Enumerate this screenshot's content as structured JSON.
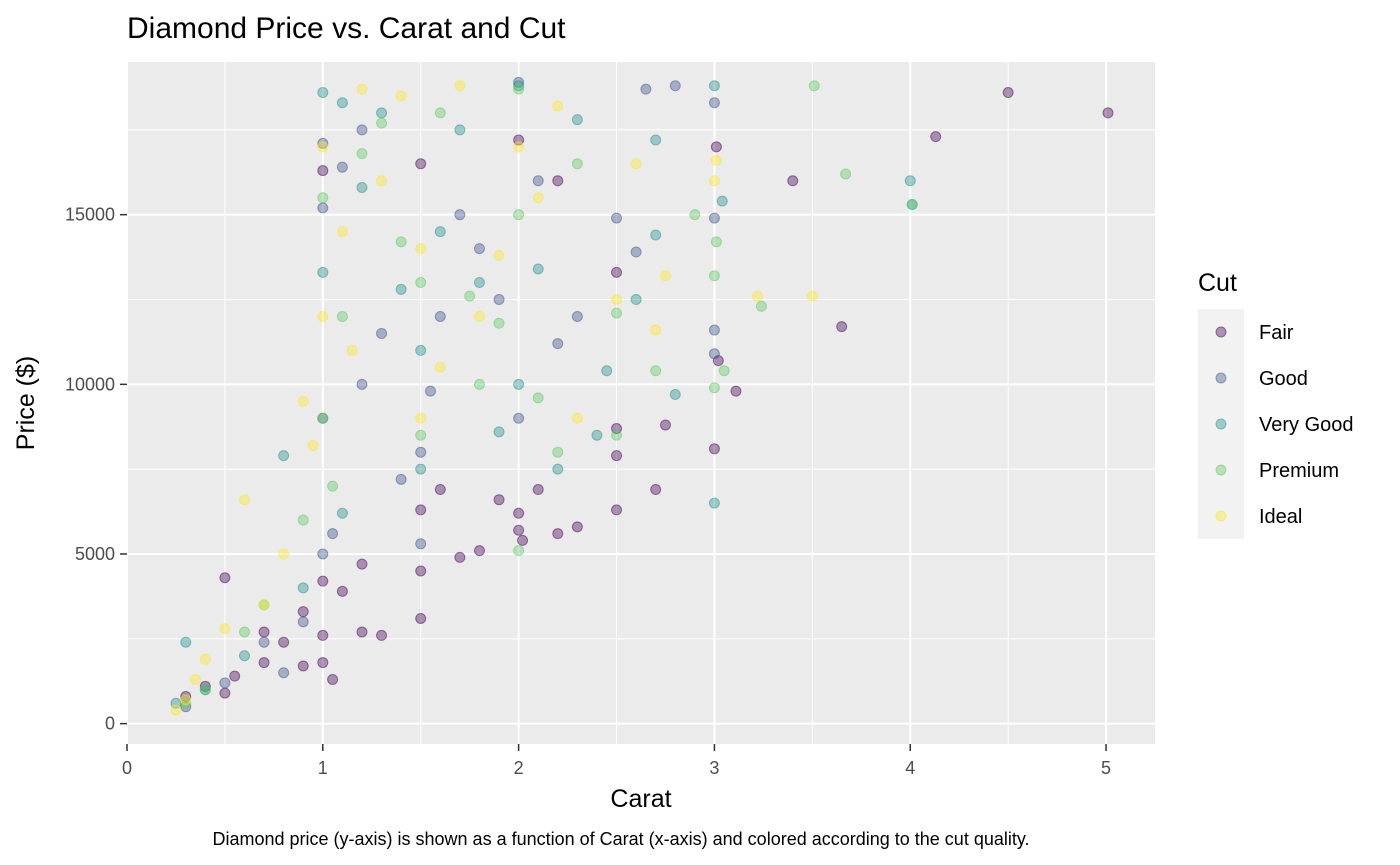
{
  "chart_data": {
    "type": "scatter",
    "title": "Diamond Price vs. Carat and Cut",
    "xlabel": "Carat",
    "ylabel": "Price ($)",
    "caption": "Diamond price (y-axis) is shown as a function of Carat (x-axis) and colored according to the cut quality.",
    "xlim": [
      0,
      5.25
    ],
    "ylim": [
      -600,
      19500
    ],
    "x_ticks": [
      0,
      1,
      2,
      3,
      4,
      5
    ],
    "x_tick_labels": [
      "0",
      "1",
      "2",
      "3",
      "4",
      "5"
    ],
    "y_ticks": [
      0,
      5000,
      10000,
      15000
    ],
    "y_tick_labels": [
      "0",
      "5000",
      "10000",
      "15000"
    ],
    "grid": true,
    "point_alpha": 0.4,
    "legend": {
      "title": "Cut",
      "position": "right"
    },
    "series": [
      {
        "name": "Fair",
        "color": "#440154",
        "points": [
          [
            0.3,
            800
          ],
          [
            0.4,
            1100
          ],
          [
            0.5,
            900
          ],
          [
            0.5,
            4300
          ],
          [
            0.55,
            1400
          ],
          [
            0.7,
            1800
          ],
          [
            0.7,
            2700
          ],
          [
            0.8,
            2400
          ],
          [
            0.9,
            1700
          ],
          [
            0.9,
            3300
          ],
          [
            1.0,
            1800
          ],
          [
            1.0,
            2600
          ],
          [
            1.0,
            4200
          ],
          [
            1.05,
            1300
          ],
          [
            1.1,
            3900
          ],
          [
            1.2,
            2700
          ],
          [
            1.2,
            4700
          ],
          [
            1.3,
            2600
          ],
          [
            1.5,
            3100
          ],
          [
            1.5,
            4500
          ],
          [
            1.5,
            6300
          ],
          [
            1.6,
            6900
          ],
          [
            1.7,
            4900
          ],
          [
            1.8,
            5100
          ],
          [
            1.9,
            6600
          ],
          [
            2.0,
            5700
          ],
          [
            2.0,
            6200
          ],
          [
            2.02,
            5400
          ],
          [
            2.1,
            6900
          ],
          [
            2.2,
            5600
          ],
          [
            2.3,
            5800
          ],
          [
            2.5,
            6300
          ],
          [
            2.5,
            7900
          ],
          [
            2.5,
            8700
          ],
          [
            2.7,
            6900
          ],
          [
            2.75,
            8800
          ],
          [
            3.0,
            8100
          ],
          [
            3.01,
            17000
          ],
          [
            3.02,
            10700
          ],
          [
            3.11,
            9800
          ],
          [
            3.4,
            16000
          ],
          [
            3.65,
            11700
          ],
          [
            4.13,
            17300
          ],
          [
            4.5,
            18600
          ],
          [
            5.01,
            18000
          ],
          [
            2.0,
            17200
          ],
          [
            2.2,
            16000
          ],
          [
            2.5,
            13300
          ],
          [
            1.5,
            16500
          ],
          [
            1.0,
            16300
          ]
        ]
      },
      {
        "name": "Good",
        "color": "#3b528b",
        "points": [
          [
            0.3,
            500
          ],
          [
            0.5,
            1200
          ],
          [
            0.7,
            2400
          ],
          [
            0.9,
            3000
          ],
          [
            1.0,
            5000
          ],
          [
            1.0,
            9000
          ],
          [
            1.0,
            15200
          ],
          [
            1.1,
            16400
          ],
          [
            1.2,
            10000
          ],
          [
            1.3,
            11500
          ],
          [
            1.5,
            5300
          ],
          [
            1.5,
            8000
          ],
          [
            1.6,
            12000
          ],
          [
            1.8,
            14000
          ],
          [
            2.0,
            9000
          ],
          [
            2.0,
            18900
          ],
          [
            2.1,
            16000
          ],
          [
            2.3,
            12000
          ],
          [
            2.5,
            14900
          ],
          [
            2.6,
            13900
          ],
          [
            2.65,
            18700
          ],
          [
            2.8,
            18800
          ],
          [
            3.0,
            10900
          ],
          [
            3.0,
            11600
          ],
          [
            3.0,
            14900
          ],
          [
            3.0,
            18300
          ],
          [
            1.0,
            17100
          ],
          [
            1.2,
            17500
          ],
          [
            1.7,
            15000
          ],
          [
            1.9,
            12500
          ],
          [
            0.8,
            1500
          ],
          [
            1.05,
            5600
          ],
          [
            1.4,
            7200
          ],
          [
            1.55,
            9800
          ],
          [
            2.2,
            11200
          ]
        ]
      },
      {
        "name": "Very Good",
        "color": "#21908d",
        "points": [
          [
            0.25,
            600
          ],
          [
            0.3,
            2400
          ],
          [
            0.4,
            1000
          ],
          [
            0.6,
            2000
          ],
          [
            0.8,
            7900
          ],
          [
            1.0,
            13300
          ],
          [
            1.0,
            18600
          ],
          [
            1.1,
            18300
          ],
          [
            1.3,
            18000
          ],
          [
            1.5,
            7500
          ],
          [
            1.5,
            11000
          ],
          [
            1.6,
            14500
          ],
          [
            1.8,
            13000
          ],
          [
            2.0,
            10000
          ],
          [
            2.0,
            18800
          ],
          [
            2.2,
            7500
          ],
          [
            2.4,
            8500
          ],
          [
            2.6,
            12500
          ],
          [
            2.7,
            14400
          ],
          [
            2.7,
            17200
          ],
          [
            2.8,
            9700
          ],
          [
            3.0,
            6500
          ],
          [
            3.0,
            18800
          ],
          [
            3.04,
            15400
          ],
          [
            4.0,
            16000
          ],
          [
            4.01,
            15300
          ],
          [
            1.2,
            15800
          ],
          [
            1.4,
            12800
          ],
          [
            1.7,
            17500
          ],
          [
            2.3,
            17800
          ],
          [
            0.9,
            4000
          ],
          [
            1.1,
            6200
          ],
          [
            1.9,
            8600
          ],
          [
            2.1,
            13400
          ],
          [
            2.45,
            10400
          ]
        ]
      },
      {
        "name": "Premium",
        "color": "#5ec962",
        "points": [
          [
            0.3,
            600
          ],
          [
            0.4,
            1000
          ],
          [
            0.6,
            2700
          ],
          [
            0.9,
            6000
          ],
          [
            1.0,
            9000
          ],
          [
            1.0,
            15500
          ],
          [
            1.1,
            12000
          ],
          [
            1.3,
            17700
          ],
          [
            1.5,
            8500
          ],
          [
            1.5,
            13000
          ],
          [
            1.6,
            18000
          ],
          [
            1.8,
            10000
          ],
          [
            2.0,
            5100
          ],
          [
            2.0,
            15000
          ],
          [
            2.0,
            18700
          ],
          [
            2.2,
            8000
          ],
          [
            2.5,
            8500
          ],
          [
            2.5,
            12100
          ],
          [
            2.7,
            10400
          ],
          [
            2.9,
            15000
          ],
          [
            3.0,
            9900
          ],
          [
            3.0,
            13200
          ],
          [
            3.01,
            14200
          ],
          [
            3.05,
            10400
          ],
          [
            3.24,
            12300
          ],
          [
            3.51,
            18800
          ],
          [
            3.67,
            16200
          ],
          [
            4.01,
            15300
          ],
          [
            1.2,
            16800
          ],
          [
            1.4,
            14200
          ],
          [
            1.75,
            12600
          ],
          [
            2.3,
            16500
          ],
          [
            0.7,
            3500
          ],
          [
            1.05,
            7000
          ],
          [
            1.9,
            11800
          ],
          [
            2.1,
            9600
          ]
        ]
      },
      {
        "name": "Ideal",
        "color": "#fde725",
        "points": [
          [
            0.25,
            400
          ],
          [
            0.3,
            700
          ],
          [
            0.35,
            1300
          ],
          [
            0.4,
            1900
          ],
          [
            0.5,
            2800
          ],
          [
            0.6,
            6600
          ],
          [
            0.7,
            3500
          ],
          [
            0.8,
            5000
          ],
          [
            0.9,
            9500
          ],
          [
            1.0,
            12000
          ],
          [
            1.0,
            17000
          ],
          [
            1.1,
            14500
          ],
          [
            1.2,
            18700
          ],
          [
            1.3,
            16000
          ],
          [
            1.5,
            9000
          ],
          [
            1.5,
            14000
          ],
          [
            1.7,
            18800
          ],
          [
            1.8,
            12000
          ],
          [
            2.0,
            17000
          ],
          [
            2.1,
            15500
          ],
          [
            2.3,
            9000
          ],
          [
            2.5,
            12500
          ],
          [
            2.6,
            16500
          ],
          [
            2.75,
            13200
          ],
          [
            2.7,
            11600
          ],
          [
            3.0,
            16000
          ],
          [
            3.01,
            16600
          ],
          [
            3.22,
            12600
          ],
          [
            3.5,
            12600
          ],
          [
            1.4,
            18500
          ],
          [
            1.6,
            10500
          ],
          [
            1.9,
            13800
          ],
          [
            2.2,
            18200
          ],
          [
            0.95,
            8200
          ],
          [
            1.15,
            11000
          ]
        ]
      }
    ]
  }
}
